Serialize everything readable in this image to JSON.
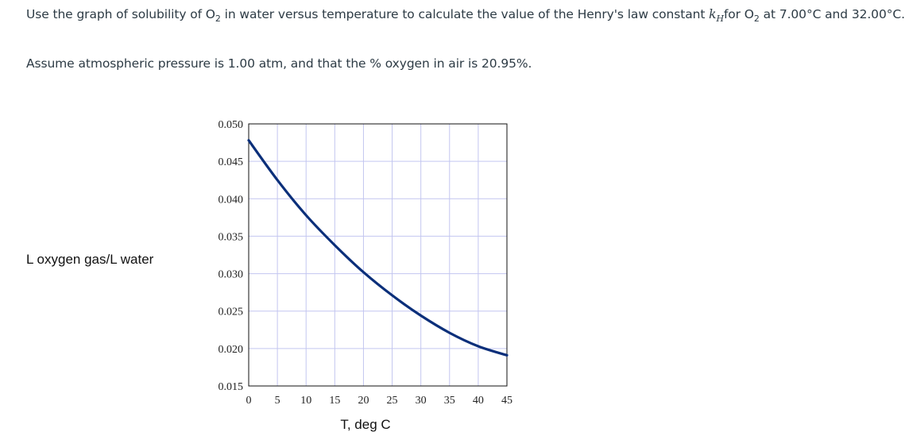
{
  "question": {
    "p1_a": "Use the graph of solubility of O",
    "p1_sub1": "2",
    "p1_b": " in water versus temperature to calculate the value of the Henry's law constant ",
    "p1_k": "k",
    "p1_ksub": "H",
    "p1_c": "for O",
    "p1_sub2": "2",
    "p1_d": " at 7.00°C and 32.00°C.",
    "p2": "Assume atmospheric pressure is 1.00 atm, and that the % oxygen in air is 20.95%."
  },
  "chart_data": {
    "type": "line",
    "title": "",
    "xlabel": "T, deg C",
    "ylabel": "L oxygen gas/L water",
    "xlim": [
      0,
      45
    ],
    "ylim": [
      0.015,
      0.05
    ],
    "xticks": [
      "0",
      "5",
      "10",
      "15",
      "20",
      "25",
      "30",
      "35",
      "40",
      "45"
    ],
    "yticks": [
      "0.015",
      "0.020",
      "0.025",
      "0.030",
      "0.035",
      "0.040",
      "0.045",
      "0.050"
    ],
    "grid": true,
    "series": [
      {
        "color": "#0b2f7a",
        "x": [
          0,
          5,
          10,
          15,
          20,
          25,
          30,
          35,
          40,
          45
        ],
        "y": [
          0.0478,
          0.0425,
          0.0378,
          0.0338,
          0.0302,
          0.0271,
          0.0244,
          0.0221,
          0.0203,
          0.0191
        ]
      }
    ]
  }
}
